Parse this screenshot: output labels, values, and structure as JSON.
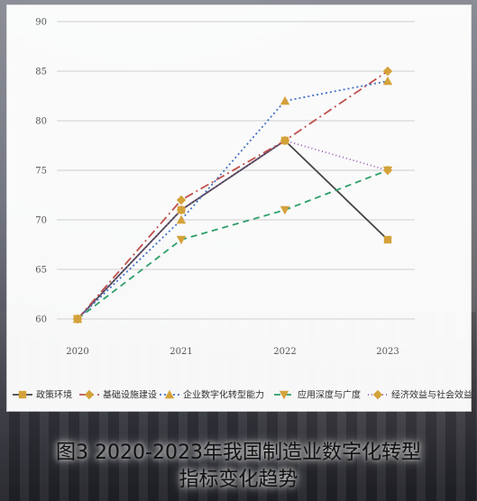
{
  "chart_data": {
    "type": "line",
    "categories": [
      "2020",
      "2021",
      "2022",
      "2023"
    ],
    "ylim": [
      60,
      90
    ],
    "yticks": [
      60,
      65,
      70,
      75,
      80,
      85,
      90
    ],
    "grid": true,
    "legend_position": "bottom",
    "series": [
      {
        "name": "政策环境",
        "values": [
          60,
          71,
          78,
          68
        ],
        "color": "#444444",
        "dash": "",
        "marker": "square"
      },
      {
        "name": "基础设施建设",
        "values": [
          60,
          72,
          78,
          85
        ],
        "color": "#c0504d",
        "dash": "10 4 2 4",
        "marker": "diamond"
      },
      {
        "name": "企业数字化转型能力",
        "values": [
          60,
          70,
          82,
          84
        ],
        "color": "#4472c4",
        "dash": "2 3",
        "marker": "triangle"
      },
      {
        "name": "应用深度与广度",
        "values": [
          60,
          68,
          71,
          75
        ],
        "color": "#2e9e6a",
        "dash": "7 5",
        "marker": "triangle-down"
      },
      {
        "name": "经济效益与社会效益",
        "values": [
          60,
          71,
          78,
          75
        ],
        "color": "#9b59b6",
        "dash": "1 3",
        "marker": "diamond"
      }
    ],
    "marker_color": "#d4a23a"
  },
  "caption": {
    "line1": "图3 2020-2023年我国制造业数字化转型",
    "line2": "指标变化趋势"
  }
}
